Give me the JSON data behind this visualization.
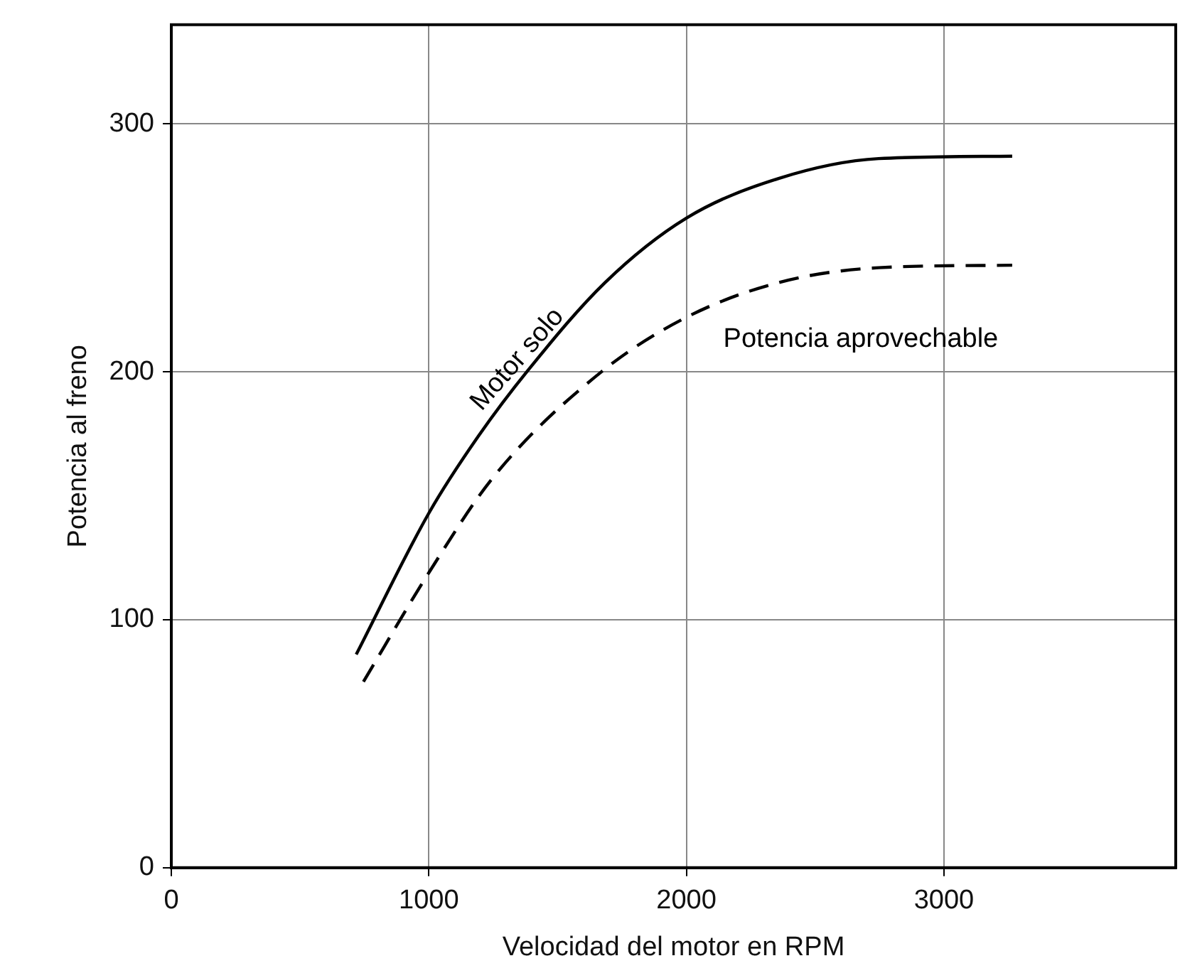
{
  "chart_data": {
    "type": "line",
    "xlabel": "Velocidad del motor en RPM",
    "ylabel": "Potencia al freno",
    "xlim": [
      0,
      3900
    ],
    "xticks": [
      0,
      1000,
      2000,
      3000
    ],
    "ylim": [
      0,
      340
    ],
    "yticks": [
      0,
      100,
      200,
      300
    ],
    "grid": true,
    "legend": false,
    "marker": "none",
    "series": [
      {
        "name": "Motor solo",
        "color": "#000000",
        "line_style": "solid",
        "x": [
          718,
          1000,
          1192,
          1388,
          1684,
          2000,
          2358,
          2746,
          3265
        ],
        "values": [
          86,
          143,
          174,
          201,
          236,
          262,
          278,
          286,
          287
        ]
      },
      {
        "name": "Potencia aprovechable",
        "color": "#000000",
        "line_style": "dashed",
        "x": [
          746,
          1000,
          1254,
          1670,
          2000,
          2358,
          2746,
          3265
        ],
        "values": [
          75,
          119,
          158,
          200,
          222,
          236,
          242,
          243
        ]
      }
    ]
  }
}
